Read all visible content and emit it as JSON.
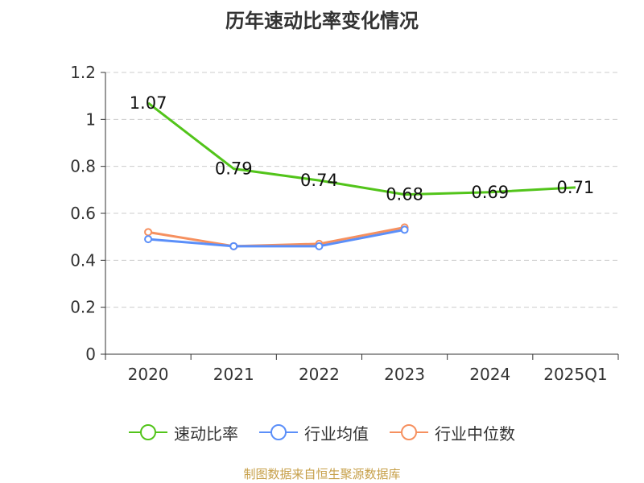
{
  "chart_data": {
    "type": "line",
    "title": "历年速动比率变化情况",
    "categories": [
      "2020",
      "2021",
      "2022",
      "2023",
      "2024",
      "2025Q1"
    ],
    "ylim": [
      0,
      1.2
    ],
    "yticks": [
      "0",
      "0.2",
      "0.4",
      "0.6",
      "0.8",
      "1",
      "1.2"
    ],
    "grid": true,
    "legend_position": "bottom",
    "series": [
      {
        "name": "速动比率",
        "values": [
          1.07,
          0.79,
          0.74,
          0.68,
          0.69,
          0.71
        ],
        "labels": [
          "1.07",
          "0.79",
          "0.74",
          "0.68",
          "0.69",
          "0.71"
        ],
        "color": "#52c41a"
      },
      {
        "name": "行业均值",
        "values": [
          0.49,
          0.46,
          0.46,
          0.53,
          null,
          null
        ],
        "color": "#5b8ff9"
      },
      {
        "name": "行业中位数",
        "values": [
          0.52,
          0.46,
          0.47,
          0.54,
          null,
          null
        ],
        "color": "#f6905f"
      }
    ]
  },
  "footer": {
    "source": "制图数据来自恒生聚源数据库"
  }
}
